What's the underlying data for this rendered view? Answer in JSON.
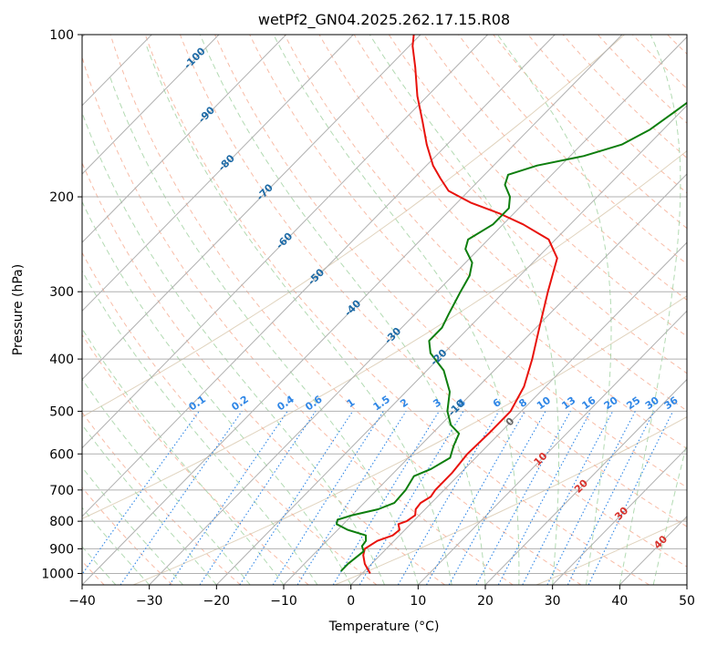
{
  "chart_data": {
    "type": "skew-t",
    "title": "wetPf2_GN04.2025.262.17.15.R08",
    "xlabel": "Temperature (°C)",
    "ylabel": "Pressure (hPa)",
    "xlim": [
      -40,
      50
    ],
    "ylim": [
      1050,
      100
    ],
    "y_scale": "log",
    "x_ticks": [
      -40,
      -30,
      -20,
      -10,
      0,
      10,
      20,
      30,
      40,
      50
    ],
    "x_tick_labels": [
      "−40",
      "−30",
      "−20",
      "−10",
      "0",
      "10",
      "20",
      "30",
      "40",
      "50"
    ],
    "y_ticks": [
      1000,
      900,
      800,
      700,
      600,
      500,
      400,
      300,
      200,
      100
    ],
    "y_tick_labels": [
      "1000",
      "900",
      "800",
      "700",
      "600",
      "500",
      "400",
      "300",
      "200",
      "100"
    ],
    "grid": true,
    "colors": {
      "temperature": "#e8120c",
      "dewpoint": "#0d7e0d",
      "isotherm": "#b0b0b0",
      "dry_adiabat": "#f6a58a",
      "moist_adiabat": "#a5d3a5",
      "mixing_ratio": "#2f86e6",
      "theta_e": "#d8c8ae",
      "isotherm_label": "#1d6aa6",
      "moist_label": "#d8322c"
    },
    "series": [
      {
        "role": "temperature",
        "points": [
          [
            1000,
            1.2
          ],
          [
            960,
            -1.0
          ],
          [
            925,
            -2.5
          ],
          [
            900,
            -3.2
          ],
          [
            870,
            -2.5
          ],
          [
            850,
            -1.0
          ],
          [
            830,
            -0.8
          ],
          [
            810,
            -1.8
          ],
          [
            800,
            -1.0
          ],
          [
            780,
            -0.6
          ],
          [
            760,
            -1.4
          ],
          [
            740,
            -1.6
          ],
          [
            720,
            -1.0
          ],
          [
            700,
            -1.3
          ],
          [
            650,
            -1.3
          ],
          [
            600,
            -1.8
          ],
          [
            550,
            -1.6
          ],
          [
            500,
            -1.6
          ],
          [
            450,
            -3.2
          ],
          [
            400,
            -6.0
          ],
          [
            350,
            -9.5
          ],
          [
            300,
            -13.5
          ],
          [
            260,
            -17.0
          ],
          [
            240,
            -21.0
          ],
          [
            225,
            -27.0
          ],
          [
            215,
            -32.0
          ],
          [
            205,
            -38.0
          ],
          [
            195,
            -43.0
          ],
          [
            185,
            -46.0
          ],
          [
            175,
            -49.0
          ],
          [
            160,
            -53.0
          ],
          [
            145,
            -57.0
          ],
          [
            130,
            -61.5
          ],
          [
            115,
            -66.0
          ],
          [
            105,
            -69.5
          ],
          [
            100,
            -71.0
          ]
        ]
      },
      {
        "role": "dewpoint",
        "points": [
          [
            990,
            -3.5
          ],
          [
            960,
            -3.5
          ],
          [
            930,
            -3.2
          ],
          [
            910,
            -3.0
          ],
          [
            890,
            -4.0
          ],
          [
            870,
            -4.2
          ],
          [
            850,
            -5.0
          ],
          [
            830,
            -8.5
          ],
          [
            810,
            -11.0
          ],
          [
            795,
            -11.5
          ],
          [
            780,
            -10.0
          ],
          [
            760,
            -7.0
          ],
          [
            740,
            -5.5
          ],
          [
            700,
            -5.7
          ],
          [
            660,
            -6.5
          ],
          [
            640,
            -5.0
          ],
          [
            610,
            -3.8
          ],
          [
            580,
            -5.0
          ],
          [
            550,
            -6.0
          ],
          [
            530,
            -8.5
          ],
          [
            500,
            -11.0
          ],
          [
            460,
            -13.5
          ],
          [
            420,
            -17.5
          ],
          [
            390,
            -22.0
          ],
          [
            370,
            -24.0
          ],
          [
            350,
            -24.0
          ],
          [
            330,
            -25.0
          ],
          [
            300,
            -26.5
          ],
          [
            280,
            -27.5
          ],
          [
            265,
            -29.0
          ],
          [
            250,
            -32.0
          ],
          [
            240,
            -33.0
          ],
          [
            225,
            -31.5
          ],
          [
            210,
            -31.5
          ],
          [
            200,
            -33.0
          ],
          [
            190,
            -35.5
          ],
          [
            182,
            -36.5
          ],
          [
            175,
            -33.5
          ],
          [
            168,
            -28.0
          ],
          [
            160,
            -24.0
          ],
          [
            150,
            -22.0
          ],
          [
            140,
            -21.0
          ],
          [
            130,
            -20.0
          ],
          [
            120,
            -19.0
          ],
          [
            110,
            -18.0
          ],
          [
            100,
            -17.5
          ]
        ]
      }
    ],
    "isotherm_labels": [
      "-100",
      "-90",
      "-80",
      "-70",
      "-60",
      "-50",
      "-40",
      "-30",
      "-20",
      "-10",
      "0",
      "10",
      "20",
      "30",
      "40"
    ],
    "mixing_ratio_labels": [
      "0.1",
      "0.2",
      "0.4",
      "0.6",
      "1",
      "1.5",
      "2",
      "3",
      "4",
      "6",
      "8",
      "10",
      "13",
      "16",
      "20",
      "25",
      "30",
      "36"
    ]
  }
}
